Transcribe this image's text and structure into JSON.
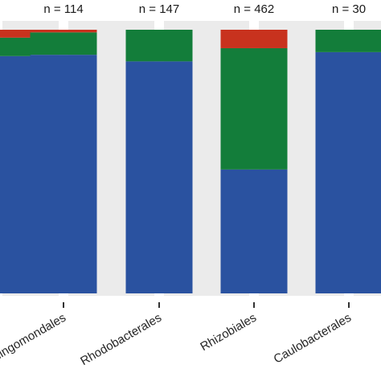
{
  "chart_data": {
    "type": "bar",
    "stacked": true,
    "normalized": true,
    "categories": [
      "",
      "Sphingomondales",
      "Rhodobacterales",
      "Rhizobiales",
      "Caulobacterales"
    ],
    "category_labels_visible": [
      "ales",
      "Sphingomondales",
      "Rhodobacterales",
      "Rhizobiales",
      "Caulobacterales"
    ],
    "n_labels": [
      "",
      "n = 114",
      "n = 147",
      "n = 462",
      "n = 30"
    ],
    "series": [
      {
        "color": "#2a52a0",
        "values": [
          0.9,
          0.905,
          0.88,
          0.47,
          0.915
        ]
      },
      {
        "color": "#137d3a",
        "values": [
          0.07,
          0.085,
          0.12,
          0.46,
          0.085
        ]
      },
      {
        "color": "#c8321e",
        "values": [
          0.03,
          0.01,
          0.0,
          0.07,
          0.0
        ]
      }
    ],
    "ylim": [
      0,
      1
    ],
    "grid": true,
    "panel_background": "#ebebeb",
    "grid_color": "#ffffff"
  }
}
